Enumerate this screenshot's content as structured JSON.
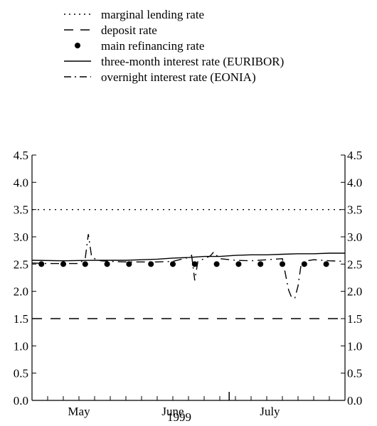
{
  "chart_data": {
    "type": "line",
    "title": "",
    "xlabel": "1999",
    "ylabel": "",
    "ylim": [
      0.0,
      4.5
    ],
    "y_ticks": [
      "0.0",
      "0.5",
      "1.0",
      "1.5",
      "2.0",
      "2.5",
      "3.0",
      "3.5",
      "4.0",
      "4.5"
    ],
    "x_domain_days": [
      0,
      100
    ],
    "x_month_labels": [
      {
        "label": "May",
        "day": 15
      },
      {
        "label": "June",
        "day": 45
      },
      {
        "label": "July",
        "day": 76
      }
    ],
    "x_minor_ticks": [
      5,
      10,
      15,
      20,
      25,
      30,
      35,
      40,
      45,
      50,
      55,
      60,
      65,
      70,
      75,
      80,
      85,
      90,
      95
    ],
    "legend_position": "top",
    "legend": [
      {
        "name": "marginal lending rate",
        "style": "dotted"
      },
      {
        "name": "deposit rate",
        "style": "dashed"
      },
      {
        "name": "main refinancing rate",
        "style": "dots"
      },
      {
        "name": "three-month interest rate (EURIBOR)",
        "style": "solid"
      },
      {
        "name": "overnight interest rate (EONIA)",
        "style": "dashdot"
      }
    ],
    "series": [
      {
        "name": "marginal lending rate",
        "style": "dotted",
        "x": [
          0,
          100
        ],
        "y": [
          3.5,
          3.5
        ]
      },
      {
        "name": "deposit rate",
        "style": "dashed",
        "x": [
          0,
          100
        ],
        "y": [
          1.5,
          1.5
        ]
      },
      {
        "name": "main refinancing rate",
        "style": "dots",
        "x": [
          3,
          10,
          17,
          24,
          31,
          38,
          45,
          52,
          59,
          66,
          73,
          80,
          87,
          94,
          101
        ],
        "y": [
          2.5,
          2.5,
          2.5,
          2.5,
          2.5,
          2.5,
          2.5,
          2.5,
          2.5,
          2.5,
          2.5,
          2.5,
          2.5,
          2.5,
          2.5
        ]
      },
      {
        "name": "three-month interest rate (EURIBOR)",
        "style": "solid",
        "x": [
          0,
          10,
          20,
          30,
          35,
          40,
          45,
          50,
          55,
          60,
          65,
          70,
          75,
          80,
          85,
          90,
          95,
          100
        ],
        "y": [
          2.57,
          2.56,
          2.57,
          2.57,
          2.58,
          2.59,
          2.61,
          2.62,
          2.64,
          2.64,
          2.66,
          2.67,
          2.67,
          2.68,
          2.69,
          2.69,
          2.7,
          2.7
        ]
      },
      {
        "name": "overnight interest rate (EONIA)",
        "style": "dashdot",
        "x": [
          0,
          5,
          10,
          15,
          17,
          18,
          19,
          20,
          22,
          25,
          30,
          35,
          40,
          45,
          50,
          51,
          52,
          53,
          55,
          57,
          58,
          59,
          60,
          65,
          70,
          75,
          80,
          82,
          83,
          84,
          85,
          86,
          88,
          90,
          95,
          100
        ],
        "y": [
          2.52,
          2.51,
          2.51,
          2.51,
          2.6,
          3.05,
          2.65,
          2.6,
          2.56,
          2.55,
          2.54,
          2.54,
          2.54,
          2.55,
          2.62,
          2.66,
          2.2,
          2.55,
          2.6,
          2.65,
          2.72,
          2.66,
          2.6,
          2.57,
          2.56,
          2.58,
          2.6,
          2.02,
          1.88,
          1.88,
          2.1,
          2.5,
          2.56,
          2.58,
          2.56,
          2.55
        ]
      }
    ]
  }
}
